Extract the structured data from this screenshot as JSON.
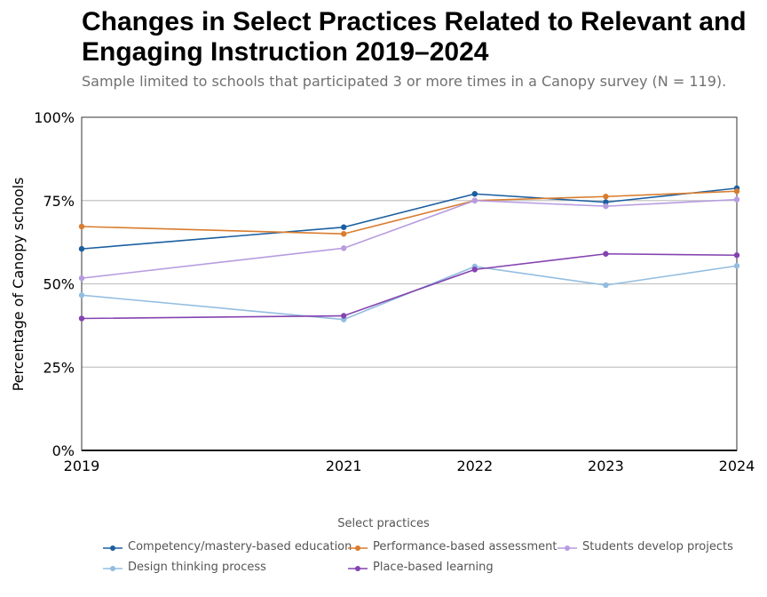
{
  "title": "Changes in Select Practices Related to Relevant and Engaging Instruction 2019–2024",
  "subtitle": "Sample limited to schools that participated 3 or more times in a Canopy survey (N = 119).",
  "chart_data": {
    "type": "line",
    "ylabel": "Percentage of Canopy schools",
    "ylim": [
      0,
      100
    ],
    "yticks": [
      0,
      25,
      50,
      75,
      100
    ],
    "ytick_labels": [
      "0%",
      "25%",
      "50%",
      "75%",
      "100%"
    ],
    "x": [
      2019,
      2021,
      2022,
      2023,
      2024
    ],
    "xtick_labels": [
      "2019",
      "2021",
      "2022",
      "2023",
      "2024"
    ],
    "xlim": [
      2019,
      2024
    ],
    "grid": "horizontal",
    "legend_title": "Select practices",
    "legend_position": "bottom",
    "series": [
      {
        "name": "Competency/mastery-based education",
        "color": "#1a5fa0",
        "values": [
          60.5,
          67,
          77,
          74.5,
          78.7
        ]
      },
      {
        "name": "Performance-based assessment",
        "color": "#d97c2e",
        "values": [
          67.2,
          65,
          75,
          76.2,
          77.8
        ]
      },
      {
        "name": "Students develop projects",
        "color": "#b69ce0",
        "values": [
          51.7,
          60.7,
          75,
          73.3,
          75.3
        ]
      },
      {
        "name": "Design thinking process",
        "color": "#93bde0",
        "values": [
          46.6,
          39.3,
          55.2,
          49.6,
          55.4
        ]
      },
      {
        "name": "Place-based learning",
        "color": "#8343b0",
        "values": [
          39.6,
          40.4,
          54.3,
          59,
          58.6
        ]
      }
    ]
  }
}
